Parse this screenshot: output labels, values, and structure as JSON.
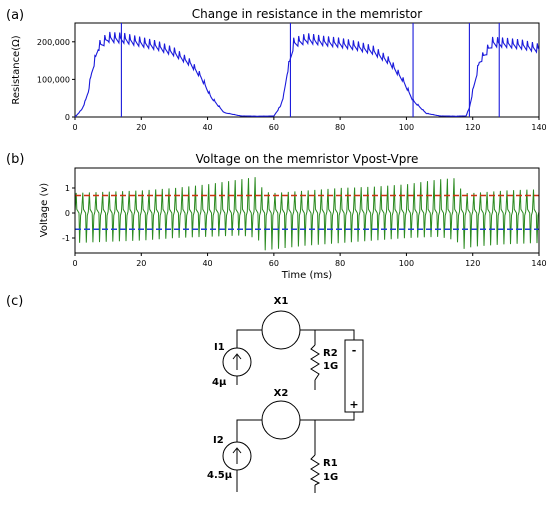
{
  "panel_labels": [
    "(a)",
    "(b)",
    "(c)"
  ],
  "chart_data": [
    {
      "type": "line",
      "title": "Change in resistance in the memristor",
      "ylabel": "Resistance(Ω)",
      "xlabel": "",
      "xlim": [
        0,
        140
      ],
      "ylim": [
        0,
        250000
      ],
      "x_ticks": [
        0,
        20,
        40,
        60,
        80,
        100,
        120,
        140
      ],
      "y_ticks": [
        0,
        100000,
        200000
      ],
      "y_tick_labels": [
        "0",
        "100,000",
        "200,000"
      ],
      "grid": false,
      "series": [
        {
          "color": "#1a1adb",
          "x": [
            0,
            2,
            3,
            4,
            5,
            7,
            10,
            15,
            20,
            25,
            30,
            35,
            38,
            41,
            45,
            50,
            55,
            60,
            62,
            63,
            64,
            66,
            70,
            75,
            80,
            85,
            90,
            95,
            99,
            102,
            106,
            110,
            115,
            118,
            119,
            120,
            122,
            126,
            130,
            135,
            140
          ],
          "y": [
            0,
            20000,
            40000,
            70000,
            120000,
            190000,
            215000,
            212000,
            202000,
            192000,
            175000,
            145000,
            110000,
            55000,
            12000,
            3000,
            2000,
            2500,
            30000,
            60000,
            120000,
            200000,
            212000,
            205000,
            200000,
            192000,
            180000,
            150000,
            100000,
            45000,
            10000,
            3000,
            2000,
            3000,
            25000,
            70000,
            150000,
            202000,
            200000,
            195000,
            185000
          ]
        }
      ]
    },
    {
      "type": "line",
      "title": "Voltage on the memristor Vpost-Vpre",
      "ylabel": "Voltage (v)",
      "xlabel": "Time (ms)",
      "xlim": [
        0,
        140
      ],
      "ylim": [
        -1.6,
        1.8
      ],
      "x_ticks": [
        0,
        20,
        40,
        60,
        80,
        100,
        120,
        140
      ],
      "y_ticks": [
        -1,
        0,
        1
      ],
      "grid": false,
      "pulse_period_ms": 2,
      "envelope": {
        "x": [
          0,
          10,
          20,
          30,
          40,
          50,
          55,
          57,
          60,
          70,
          80,
          90,
          100,
          110,
          115,
          117,
          120,
          130,
          140
        ],
        "upper": [
          0.8,
          0.85,
          0.9,
          1.0,
          1.15,
          1.35,
          1.45,
          0.85,
          0.8,
          0.9,
          1.0,
          1.05,
          1.15,
          1.35,
          1.4,
          0.8,
          0.8,
          0.9,
          0.95
        ],
        "lower": [
          -1.2,
          -1.15,
          -1.1,
          -1.0,
          -0.95,
          -0.9,
          -1.0,
          -1.5,
          -1.45,
          -1.3,
          -1.2,
          -1.1,
          -1.0,
          -0.95,
          -1.1,
          -1.45,
          -1.35,
          -1.25,
          -1.2
        ]
      },
      "series": [
        {
          "color": "#2a8a1f",
          "style": "solid"
        },
        {
          "color": "#cc3311",
          "style": "dashed",
          "y": 0.7
        },
        {
          "color": "#1f3fd6",
          "style": "dashed",
          "y": -0.65
        }
      ]
    }
  ],
  "circuit": {
    "labels": {
      "x1": "X1",
      "x2": "X2",
      "i1": "I1",
      "i1_value": "4μ",
      "i2": "I2",
      "i2_value": "4.5μ",
      "r2": "R2",
      "r2_value": "1G",
      "r1": "R1",
      "r1_value": "1G",
      "minus": "-",
      "plus": "+"
    }
  }
}
